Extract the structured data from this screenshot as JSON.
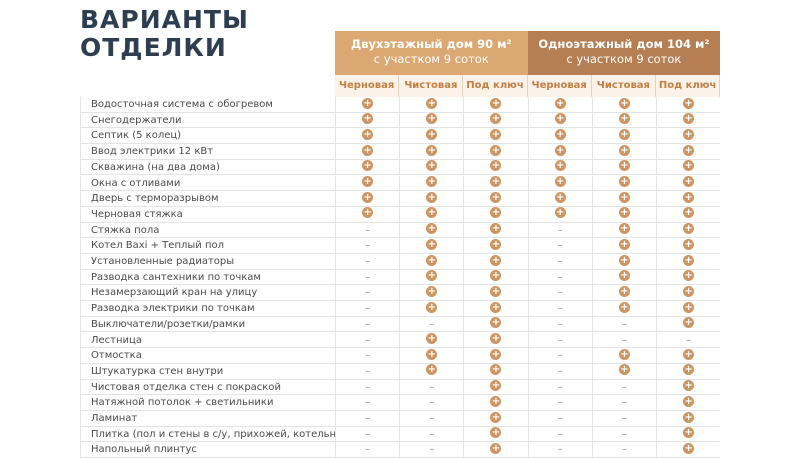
{
  "title": [
    "ВАРИАНТЫ",
    "ОТДЕЛКИ"
  ],
  "groups": [
    {
      "lines": [
        "Двухэтажный дом 90 м²",
        "с участком 9 соток"
      ]
    },
    {
      "lines": [
        "Одноэтажный дом 104 м²",
        "с участком 9 соток"
      ]
    }
  ],
  "columns": [
    "Черновая",
    "Чистовая",
    "Под ключ",
    "Черновая",
    "Чистовая",
    "Под ключ"
  ],
  "rows": [
    [
      "Водосточная система с обогревом",
      "+",
      "+",
      "+",
      "+",
      "+",
      "+"
    ],
    [
      "Снегодержатели",
      "+",
      "+",
      "+",
      "+",
      "+",
      "+"
    ],
    [
      "Септик (5 колец)",
      "+",
      "+",
      "+",
      "+",
      "+",
      "+"
    ],
    [
      "Ввод электрики 12 кВт",
      "+",
      "+",
      "+",
      "+",
      "+",
      "+"
    ],
    [
      "Скважина (на два дома)",
      "+",
      "+",
      "+",
      "+",
      "+",
      "+"
    ],
    [
      "Окна с отливами",
      "+",
      "+",
      "+",
      "+",
      "+",
      "+"
    ],
    [
      "Дверь с терморазрывом",
      "+",
      "+",
      "+",
      "+",
      "+",
      "+"
    ],
    [
      "Черновая стяжка",
      "+",
      "+",
      "+",
      "+",
      "+",
      "+"
    ],
    [
      "Стяжка пола",
      "–",
      "+",
      "+",
      "–",
      "+",
      "+"
    ],
    [
      "Котел Baxi + Теплый пол",
      "–",
      "+",
      "+",
      "–",
      "+",
      "+"
    ],
    [
      "Установленные радиаторы",
      "–",
      "+",
      "+",
      "–",
      "+",
      "+"
    ],
    [
      "Разводка сантехники по точкам",
      "–",
      "+",
      "+",
      "–",
      "+",
      "+"
    ],
    [
      "Незамерзающий кран на улицу",
      "–",
      "+",
      "+",
      "–",
      "+",
      "+"
    ],
    [
      "Разводка электрики по точкам",
      "–",
      "+",
      "+",
      "–",
      "+",
      "+"
    ],
    [
      "Выключатели/розетки/рамки",
      "–",
      "–",
      "+",
      "–",
      "–",
      "+"
    ],
    [
      "Лестница",
      "–",
      "+",
      "+",
      "–",
      "–",
      "–"
    ],
    [
      "Отмостка",
      "–",
      "+",
      "+",
      "–",
      "+",
      "+"
    ],
    [
      "Штукатурка стен внутри",
      "–",
      "+",
      "+",
      "–",
      "+",
      "+"
    ],
    [
      "Чистовая отделка стен с покраской",
      "–",
      "–",
      "+",
      "–",
      "–",
      "+"
    ],
    [
      "Натяжной потолок + светильники",
      "–",
      "–",
      "+",
      "–",
      "–",
      "+"
    ],
    [
      "Ламинат",
      "–",
      "–",
      "+",
      "–",
      "–",
      "+"
    ],
    [
      "Плитка (пол и стены в с/у, прихожей, котельной)",
      "–",
      "–",
      "+",
      "–",
      "–",
      "+"
    ],
    [
      "Напольный плинтус",
      "–",
      "–",
      "+",
      "–",
      "–",
      "+"
    ]
  ]
}
